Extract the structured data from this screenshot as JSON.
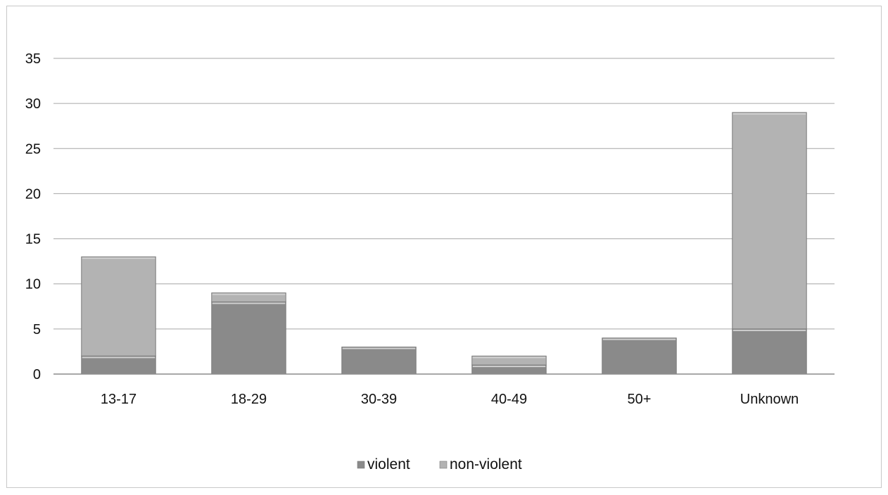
{
  "chart_data": {
    "type": "bar",
    "stacked": true,
    "categories": [
      "13-17",
      "18-29",
      "30-39",
      "40-49",
      "50+",
      "Unknown"
    ],
    "series": [
      {
        "name": "violent",
        "values": [
          2,
          8,
          3,
          1,
          4,
          5
        ],
        "color": "#8a8a8a"
      },
      {
        "name": "non-violent",
        "values": [
          11,
          1,
          0,
          1,
          0,
          24
        ],
        "color": "#b3b3b3"
      }
    ],
    "ylim": [
      0,
      35
    ],
    "yticks": [
      0,
      5,
      10,
      15,
      20,
      25,
      30,
      35
    ],
    "grid": true,
    "legend_position": "bottom",
    "title": "",
    "xlabel": "",
    "ylabel": ""
  }
}
